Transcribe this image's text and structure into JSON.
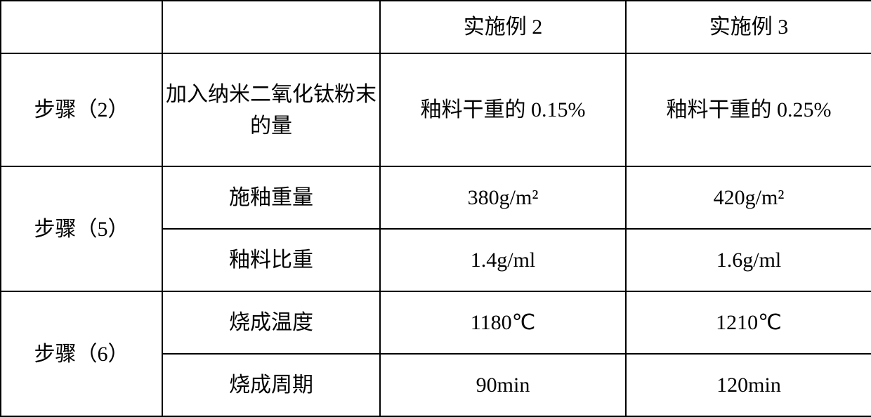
{
  "table": {
    "border_color": "#000000",
    "background_color": "#ffffff",
    "text_color": "#000000",
    "font_size_pt": 22,
    "header": {
      "c1": "",
      "c2": "",
      "c3": "实施例 2",
      "c4": "实施例 3"
    },
    "rows": [
      {
        "step": "步骤（2）",
        "param": "加入纳米二氧化钛粉末的量",
        "v2": "釉料干重的 0.15%",
        "v3": "釉料干重的 0.25%"
      },
      {
        "step": "步骤（5）",
        "sub": [
          {
            "param": "施釉重量",
            "v2": "380g/m²",
            "v3": "420g/m²"
          },
          {
            "param": "釉料比重",
            "v2": "1.4g/ml",
            "v3": "1.6g/ml"
          }
        ]
      },
      {
        "step": "步骤（6）",
        "sub": [
          {
            "param": "烧成温度",
            "v2": "1180℃",
            "v3": "1210℃"
          },
          {
            "param": "烧成周期",
            "v2": "90min",
            "v3": "120min"
          }
        ]
      }
    ]
  }
}
